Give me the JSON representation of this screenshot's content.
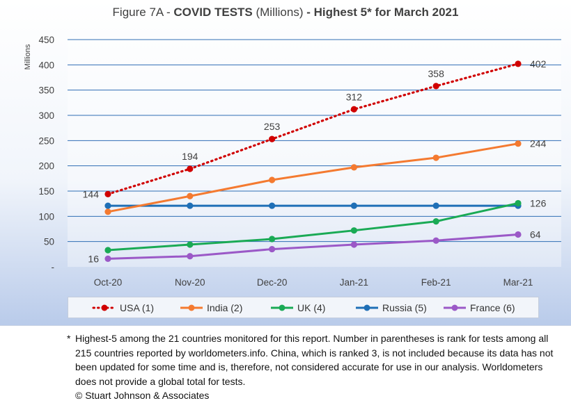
{
  "title": {
    "prefix": "Figure 7A - ",
    "bold1": "COVID TESTS",
    "middle": " (Millions) ",
    "bold2": "- Highest 5* for March 2021"
  },
  "chart_data": {
    "type": "line",
    "title": "Figure 7A - COVID TESTS (Millions) - Highest 5* for March 2021",
    "xlabel": "",
    "ylabel": "Millions",
    "categories": [
      "Oct-20",
      "Nov-20",
      "Dec-20",
      "Jan-21",
      "Feb-21",
      "Mar-21"
    ],
    "ylim": [
      0,
      450
    ],
    "yticks": [
      0,
      50,
      100,
      150,
      200,
      250,
      300,
      350,
      400,
      450
    ],
    "ytick_labels": [
      "-",
      "50",
      "100",
      "150",
      "200",
      "250",
      "300",
      "350",
      "400",
      "450"
    ],
    "grid": true,
    "legend": "bottom",
    "series": [
      {
        "name": "USA (1)",
        "color": "#d00000",
        "style": "dotted",
        "values": [
          144,
          194,
          253,
          312,
          358,
          402
        ],
        "labels": [
          "144",
          "194",
          "253",
          "312",
          "358",
          "402"
        ]
      },
      {
        "name": "India (2)",
        "color": "#f47a30",
        "style": "solid",
        "values": [
          109,
          140,
          172,
          197,
          216,
          244
        ],
        "labels": [
          "",
          "",
          "",
          "",
          "",
          "244"
        ]
      },
      {
        "name": "UK (4)",
        "color": "#1aaa55",
        "style": "solid",
        "values": [
          33,
          44,
          55,
          72,
          90,
          126
        ],
        "labels": [
          "",
          "",
          "",
          "",
          "",
          "126"
        ]
      },
      {
        "name": "Russia (5)",
        "color": "#1f6fb6",
        "style": "solid",
        "values": [
          121,
          121,
          121,
          121,
          121,
          121
        ],
        "labels": [
          "",
          "",
          "",
          "",
          "",
          ""
        ]
      },
      {
        "name": "France (6)",
        "color": "#9b59c7",
        "style": "solid",
        "values": [
          16,
          21,
          35,
          44,
          52,
          64
        ],
        "labels": [
          "16",
          "",
          "",
          "",
          "",
          "64"
        ]
      }
    ]
  },
  "footnote": {
    "mark": "*",
    "text": "Highest-5 among the 21 countries monitored for this report. Number in parentheses is rank for tests among all 215 countries reported by worldometers.info. China, which is ranked 3, is not included because its data has not been updated for some time and is, therefore, not considered accurate for use in our analysis. Worldometers does not provide a global total for tests.",
    "copyright": "© Stuart Johnson & Associates"
  }
}
